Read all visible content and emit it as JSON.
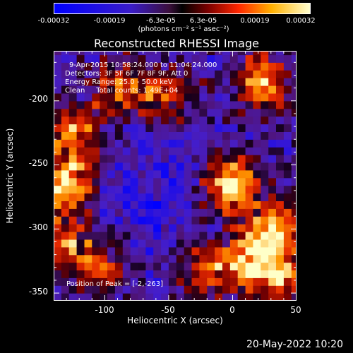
{
  "colorbar": {
    "ticks": [
      "-0.00032",
      "-0.00019",
      "-6.3e-05",
      "6.3e-05",
      "0.00019",
      "0.00032"
    ],
    "units": "(photons cm⁻² s⁻¹ asec⁻²)",
    "min": -0.00032,
    "max": 0.00032
  },
  "annotations": {
    "line1": "9-Apr-2015 10:58:24.000 to 11:04:24.000",
    "line2": "Detectors: 3F 5F 6F 7F 8F 9F, Att 0",
    "line3": "Energy Range: 25.0 - 50.0 keV",
    "line4": "Clean     Total counts: 1.49E+04",
    "peak": "Position of Peak = [-2,-263]"
  },
  "footer": "20-May-2022 10:20",
  "chart_data": {
    "type": "heatmap",
    "title": "Reconstructed RHESSI Image",
    "xlabel": "Heliocentric X (arcsec)",
    "ylabel": "Heliocentric Y (arcsec)",
    "xlim": [
      -140,
      50
    ],
    "ylim": [
      -356,
      -161
    ],
    "xticks": [
      -100,
      -50,
      0,
      50
    ],
    "yticks": [
      -200,
      -250,
      -300,
      -350
    ],
    "peak_position": [
      -2,
      -263
    ],
    "colormap": "blue-purple-red-yellow-white",
    "grid": false,
    "hotspots": [
      {
        "x": -2,
        "y": -263,
        "intensity": 1.0
      },
      {
        "x": -130,
        "y": -265,
        "intensity": 0.85
      },
      {
        "x": -125,
        "y": -225,
        "intensity": 0.7
      },
      {
        "x": 25,
        "y": -185,
        "intensity": 0.75
      },
      {
        "x": 35,
        "y": -300,
        "intensity": 0.8
      },
      {
        "x": 15,
        "y": -325,
        "intensity": 0.7
      },
      {
        "x": -20,
        "y": -330,
        "intensity": 0.55
      },
      {
        "x": -55,
        "y": -195,
        "intensity": 0.55
      },
      {
        "x": -90,
        "y": -190,
        "intensity": 0.55
      },
      {
        "x": 40,
        "y": -340,
        "intensity": 0.6
      },
      {
        "x": -100,
        "y": -330,
        "intensity": 0.45
      },
      {
        "x": -130,
        "y": -310,
        "intensity": 0.6
      }
    ]
  }
}
